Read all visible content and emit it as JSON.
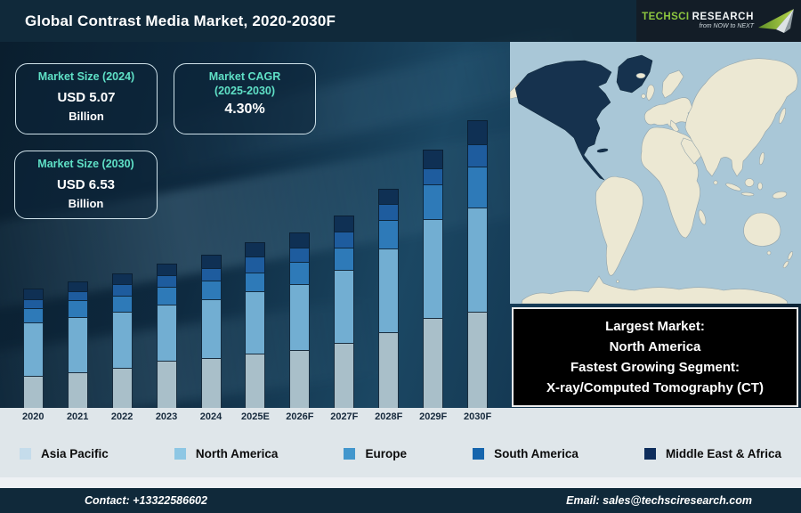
{
  "header": {
    "title": "Global Contrast Media Market, 2020-2030F",
    "logo": {
      "brand_1": "TechSci",
      "brand_2": "Research",
      "tagline": "from NOW to NEXT",
      "brand_green": "#8dc63f"
    }
  },
  "stats": {
    "box_2024": {
      "label": "Market Size (2024)",
      "value": "USD 5.07",
      "unit": "Billion"
    },
    "box_cagr": {
      "label_line1": "Market CAGR",
      "label_line2": "(2025-2030)",
      "value": "4.30%"
    },
    "box_2030": {
      "label": "Market Size (2030)",
      "value": "USD 6.53",
      "unit": "Billion"
    },
    "accent_color": "#5fe0c6"
  },
  "chart_data": {
    "type": "bar",
    "stacked": true,
    "title": "Global Contrast Media Market, 2020-2030F",
    "categories": [
      "2020",
      "2021",
      "2022",
      "2023",
      "2024",
      "2025E",
      "2026F",
      "2027F",
      "2028F",
      "2029F",
      "2030F"
    ],
    "series_order": "bottom-to-top",
    "units": "relative bar height in px (chart has no value axis; market size shown in stat boxes: USD 5.07 Billion in 2024, USD 6.53 Billion in 2030, CAGR 4.30% 2025-2030)",
    "series": [
      {
        "name": "Asia Pacific",
        "color": "#a9bfc9",
        "values": [
          36,
          40,
          45,
          53,
          56,
          61,
          65,
          73,
          85,
          101,
          108
        ]
      },
      {
        "name": "North America",
        "color": "#72aed2",
        "values": [
          60,
          62,
          63,
          63,
          66,
          70,
          74,
          82,
          94,
          111,
          117
        ]
      },
      {
        "name": "Europe",
        "color": "#2e7ab8",
        "values": [
          16,
          19,
          18,
          20,
          21,
          21,
          25,
          25,
          32,
          39,
          46
        ]
      },
      {
        "name": "South America",
        "color": "#1e5c9e",
        "values": [
          10,
          10,
          13,
          13,
          14,
          18,
          16,
          18,
          18,
          18,
          25
        ]
      },
      {
        "name": "Middle East & Africa",
        "color": "#0f3054",
        "values": [
          12,
          11,
          12,
          13,
          15,
          16,
          17,
          18,
          17,
          21,
          27
        ]
      }
    ],
    "legend_position": "bottom",
    "grid": false
  },
  "legend": {
    "items": [
      {
        "label": "Asia Pacific",
        "color": "#c5dceb"
      },
      {
        "label": "North America",
        "color": "#8ec7e4"
      },
      {
        "label": "Europe",
        "color": "#4397cd"
      },
      {
        "label": "South America",
        "color": "#1665ad"
      },
      {
        "label": "Middle East & Africa",
        "color": "#0e2d5c"
      }
    ]
  },
  "map": {
    "highlighted_region": "North America",
    "ocean_color": "#a9c7d7",
    "land_color": "#ece8d3",
    "highlight_color": "#16324e"
  },
  "callout": {
    "lines": [
      "Largest Market:",
      "North America",
      "Fastest Growing Segment:",
      "X-ray/Computed Tomography (CT)"
    ]
  },
  "footer": {
    "contact": "Contact: +13322586602",
    "email": "Email: sales@techsciresearch.com"
  }
}
